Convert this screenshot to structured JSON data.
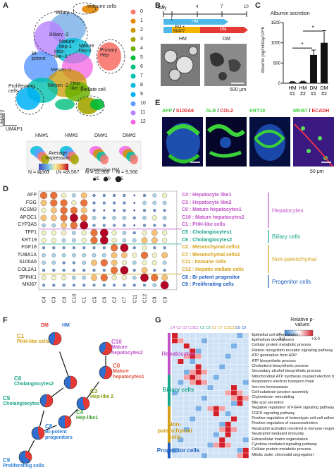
{
  "panels": {
    "A": "A",
    "B": "B",
    "C": "C",
    "D": "D",
    "E": "E",
    "F": "F",
    "G": "G"
  },
  "panelA": {
    "cluster_labels": [
      "Biliary -1",
      "Immune cells",
      "Biliary -2",
      "Mature hep-1",
      "Hep-like -1",
      "Bi-potent",
      "Mature hep-2",
      "Primary Hep",
      "Mesen -1",
      "Hep-like -2",
      "Proliferating cells",
      "Mesen -2",
      "Stellate cell"
    ],
    "umap1": "UMAP1",
    "umap2": "UMAP2",
    "legend": [
      "0",
      "1",
      "2",
      "3",
      "4",
      "5",
      "6",
      "7",
      "8",
      "9",
      "10",
      "11",
      "12"
    ],
    "legend_colors": [
      "#f8766d",
      "#e58700",
      "#c99800",
      "#a3a500",
      "#6bb100",
      "#00ba38",
      "#00bf7d",
      "#00c0af",
      "#00bcd8",
      "#00b0f6",
      "#619cff",
      "#b983ff",
      "#f564e3"
    ],
    "samples": [
      "HM#1",
      "HM#2",
      "DM#1",
      "DM#2"
    ],
    "counts": [
      "N = 8,867",
      "N = 8,567",
      "N = 12,300",
      "N = 9,566"
    ]
  },
  "panelB": {
    "day_label": "Day",
    "ticks": [
      "0",
      "1",
      "4",
      "7",
      "10"
    ],
    "hm": "HM",
    "em": "EM +",
    "bmp7": "BMP7",
    "dm": "DM",
    "img_hm": "HM",
    "img_dm": "DM",
    "scale": "500 μm"
  },
  "chart_data": {
    "type": "bar",
    "title": "Albumin secretion",
    "ylabel": "Albumin (ng/ml/day/10^6",
    "categories": [
      "HM #1",
      "HM #2",
      "DM #1",
      "DM #2"
    ],
    "values": [
      30,
      40,
      700,
      1000
    ],
    "errors": [
      10,
      10,
      120,
      300
    ],
    "ylim": [
      0,
      1500
    ],
    "yticks": [
      "0",
      "500",
      "1000",
      "1500"
    ],
    "significance": [
      "*",
      "*"
    ]
  },
  "panelD": {
    "legend_title": "Average expression",
    "color_ticks": [
      "-1",
      "0",
      "1",
      "2"
    ],
    "pct_title": "Expression (%)",
    "pct_values": [
      "25",
      "50",
      "75"
    ],
    "genes": [
      "AFP",
      "FGG",
      "ACSM3",
      "APOC1",
      "CYP3A5",
      "TFF1",
      "KRT19",
      "FGF18",
      "TUBA1A",
      "S100A6",
      "COL2A1",
      "SPINK1",
      "MKI67"
    ],
    "clusters": [
      "C4",
      "C3",
      "C0",
      "C10",
      "C1",
      "C5",
      "C6",
      "C2",
      "C7",
      "C11",
      "C12",
      "C8",
      "C9"
    ],
    "cluster_names": [
      "C4 : Hepatocyte like1",
      "C3 : Hepatocyte like2",
      "C0 : Mature hepatocytes1",
      "C10 : Mature hepatocytes2",
      "C1 : PHH-like cells",
      "C5 : Cholangiocytes1",
      "C6 : Cholangiocytes2",
      "C2 : Mesenchymal cells1",
      "C7 : Mesenchymal cells2",
      "C11 : Immune cells",
      "C12 : Hepatic stellate cells",
      "C8 : Bi potent progenitor",
      "C9 : Proliferating cells"
    ],
    "groups": [
      "Hepatocytes",
      "Biliary cells",
      "Non-parenchymal",
      "Progenitor cells"
    ],
    "group_colors": [
      "#c052c8",
      "#1aa58a",
      "#d4a017",
      "#1f5fbf"
    ]
  },
  "panelE": {
    "stains": [
      {
        "a": "AFP",
        "sep": " / ",
        "b": "S100A6",
        "ca": "#3cd13c",
        "cb": "#e03030"
      },
      {
        "a": "ALB",
        "sep": " / ",
        "b": "COL2",
        "ca": "#3cd13c",
        "cb": "#e03030"
      },
      {
        "a": "KRT19",
        "sep": "",
        "b": "",
        "ca": "#3cd13c",
        "cb": "#e03030"
      },
      {
        "a": "MKI67",
        "sep": " / ",
        "b": "ECADH",
        "ca": "#3cd13c",
        "cb": "#e03030"
      }
    ],
    "scale": "50 μm"
  },
  "panelF": {
    "dm": "DM",
    "hm": "HM",
    "nodes": [
      {
        "c": "C1",
        "t": "PHH-like cells",
        "color": "#d4a017"
      },
      {
        "c": "C10",
        "t": "Mature hepatocytes2",
        "color": "#c052c8"
      },
      {
        "c": "C0",
        "t": "Mature hepatocytes1",
        "color": "#e0523d"
      },
      {
        "c": "C6",
        "t": "Cholangiocytes2",
        "color": "#1aa58a"
      },
      {
        "c": "C3",
        "t": "Hep-like 2",
        "color": "#8a9a12"
      },
      {
        "c": "C5",
        "t": "Cholangiocytes",
        "color": "#1aa58a"
      },
      {
        "c": "C4",
        "t": "Hep-like1",
        "color": "#3aa030"
      },
      {
        "c": "C8",
        "t": "Bi-potent progenitors",
        "color": "#2b7fd4"
      },
      {
        "c": "C9",
        "t": "Proliferating cells",
        "color": "#2b7fd4"
      }
    ]
  },
  "panelG": {
    "legend_title": "Relative p-values",
    "legend_min": "-3.0",
    "legend_max": "+3.0",
    "col_labels": [
      "C4",
      "C3",
      "C0",
      "C10",
      "C1",
      "C5",
      "C6",
      "C2",
      "C7",
      "C11",
      "C12",
      "C8",
      "C9"
    ],
    "groups": [
      "Hepatocytes",
      "Biliary cells",
      "Non-parenchymal cells",
      "Progenitor cells"
    ],
    "group_colors": [
      "#c052c8",
      "#1aa58a",
      "#d4a017",
      "#1f5fbf"
    ],
    "terms": [
      "Epithelial cell differentiation",
      "Epithelium development",
      "Cellular protein metabolic process",
      "Pattern recognition receptor signaling pathway",
      "ATP generation from ADP",
      "ATP biosynthetic process",
      "Cholesterol biosynthetic process",
      "Secondary alcohol biosynthetic process",
      "Mitochondrial ATP synthesis coupled electron transport",
      "Respiratory electron transport chain",
      "Iron ion homeostasis",
      "Cell-substrate junction assembly",
      "Chylomicron remodeling",
      "Bile acid secretion",
      "Negative regulation of FGFR signaling pathway",
      "FGFR signaling pathway",
      "Positive regulation of heterotypic cell-cell adhesion",
      "Positive regulation of vasoconstriction",
      "Neutrophil activation involved in immune response",
      "Neutrophil mediated immunity",
      "Extracellular matrix organization",
      "Cytokine-mediated signaling pathway",
      "Cellular protein metabolic process",
      "Mitotic sister chromatid segregation"
    ]
  }
}
